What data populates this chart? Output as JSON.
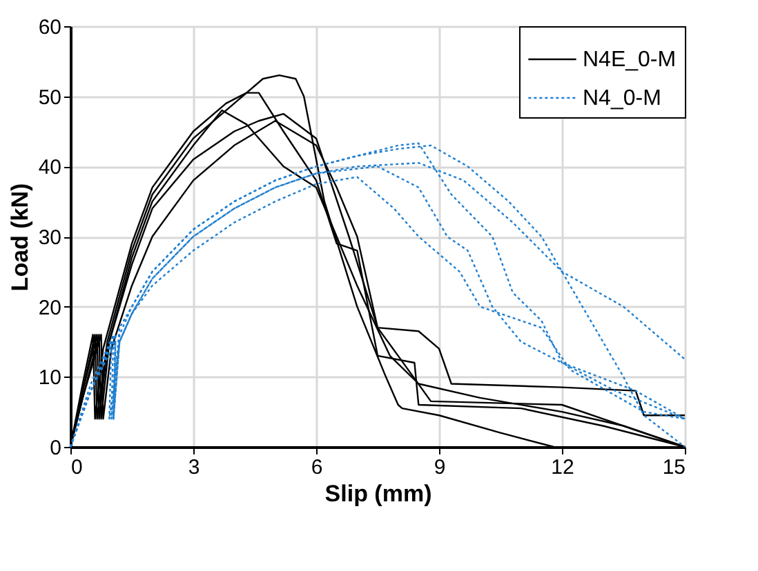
{
  "chart_data": {
    "type": "line",
    "xlabel": "Slip (mm)",
    "ylabel": "Load (kN)",
    "xlim": [
      0,
      15
    ],
    "xticks": [
      0,
      3,
      6,
      9,
      12,
      15
    ],
    "ylim": [
      0,
      60
    ],
    "yticks": [
      0,
      10,
      20,
      30,
      40,
      50,
      60
    ],
    "grid": true,
    "legend": "top right",
    "marker": "none",
    "series": [
      {
        "name": "N4E_0-M",
        "color": "#000000",
        "line_style": "solid",
        "x": [
          0,
          0.3,
          0.6,
          0.65,
          0.9,
          1.5,
          2,
          3,
          4,
          4.7,
          5.1,
          5.5,
          5.7,
          6.2,
          7,
          7.7,
          8,
          8.1,
          9,
          10.5,
          11.8
        ],
        "values": [
          0,
          8,
          16,
          4,
          15,
          28,
          36,
          44,
          49,
          52.5,
          53,
          52.5,
          50,
          35,
          20,
          10,
          6,
          5.5,
          4.5,
          2,
          0
        ]
      },
      {
        "color": "#000000",
        "line_style": "solid",
        "x": [
          0,
          0.3,
          0.55,
          0.6,
          0.8,
          1.5,
          2,
          3,
          3.8,
          4.3,
          4.6,
          5.2,
          6,
          6.5,
          7,
          7.5,
          8.4,
          8.5,
          11,
          13,
          15
        ],
        "values": [
          0,
          9,
          16,
          4,
          14,
          29,
          37,
          45,
          49,
          50.5,
          50.5,
          45,
          38,
          29,
          28,
          13,
          12,
          6,
          5.5,
          3,
          0
        ]
      },
      {
        "color": "#000000",
        "line_style": "solid",
        "x": [
          0,
          0.3,
          0.65,
          0.7,
          0.9,
          1.5,
          2,
          3,
          3.7,
          4.3,
          5.2,
          6,
          7,
          7.8,
          8.5,
          10,
          12,
          13.5,
          15
        ],
        "values": [
          0,
          8,
          16,
          4,
          14,
          27,
          35,
          43,
          48,
          46,
          40,
          37,
          23,
          13,
          9,
          7,
          5,
          3,
          0
        ]
      },
      {
        "color": "#000000",
        "line_style": "solid",
        "x": [
          0,
          0.3,
          0.7,
          0.75,
          0.95,
          1.5,
          2,
          3,
          4,
          4.6,
          5.2,
          6,
          6.8,
          7.5,
          8.5,
          9,
          9.3,
          12,
          13.8,
          14,
          15
        ],
        "values": [
          0,
          7,
          16,
          4,
          15,
          26,
          34,
          41,
          45,
          46.5,
          47.5,
          44,
          30,
          17,
          16.5,
          14,
          9,
          8.5,
          8,
          4.5,
          4.5
        ]
      },
      {
        "color": "#000000",
        "line_style": "solid",
        "x": [
          0,
          0.3,
          0.75,
          0.8,
          1,
          1.5,
          2,
          3,
          4,
          5,
          6,
          6.5,
          7,
          7.5,
          8,
          8.8,
          12,
          13,
          15
        ],
        "values": [
          0,
          7,
          16,
          4,
          14,
          23,
          30,
          38,
          43,
          46.5,
          43,
          37,
          30,
          17,
          13,
          6.5,
          6,
          4,
          0
        ]
      },
      {
        "name": "N4_0-M",
        "color": "#1f7fd0",
        "line_style": "dotted",
        "x": [
          0,
          0.5,
          1.05,
          1.0,
          1.2,
          1.5,
          2,
          3,
          4,
          5,
          6,
          7,
          8,
          8.8,
          9.7,
          10.7,
          11.5,
          12.5,
          13.5,
          14,
          15
        ],
        "values": [
          0,
          9,
          16,
          4,
          17,
          20,
          25,
          31,
          35,
          38,
          40,
          41.5,
          42.5,
          43,
          40,
          35,
          30,
          20,
          10,
          4.5,
          0
        ]
      },
      {
        "color": "#1f7fd0",
        "line_style": "dotted",
        "x": [
          0,
          0.5,
          1.1,
          1.05,
          1.2,
          1.5,
          2,
          3,
          4,
          5,
          6,
          7,
          8,
          8.5,
          9.3,
          10.3,
          10.8,
          11.5,
          12,
          13.3,
          15
        ],
        "values": [
          0,
          8,
          16,
          4,
          16,
          20,
          25,
          31,
          35,
          38,
          40,
          41.5,
          43,
          43.3,
          36,
          30,
          22,
          18,
          12,
          8,
          4
        ]
      },
      {
        "color": "#1f7fd0",
        "line_style": "dotted",
        "x": [
          0,
          0.5,
          1.1,
          1.05,
          1.2,
          1.5,
          2,
          3,
          4,
          5,
          6,
          7,
          8.5,
          9.6,
          10.8,
          12,
          13.5,
          14.5,
          15
        ],
        "values": [
          0,
          8,
          15,
          4,
          15,
          19,
          24,
          30,
          34,
          37,
          39,
          40,
          40.5,
          38,
          32,
          25,
          20,
          15,
          12.5
        ]
      },
      {
        "color": "#1f7fd0",
        "line_style": "dotted",
        "x": [
          0,
          0.5,
          1.1,
          1.05,
          1.2,
          1.5,
          2,
          3,
          4,
          5,
          6,
          7.5,
          8.5,
          9.2,
          9.7,
          10.3,
          11,
          12,
          13.8,
          15
        ],
        "values": [
          0,
          8,
          16,
          4,
          15,
          19,
          24,
          30,
          34,
          37,
          39,
          40,
          37,
          30,
          28,
          20,
          15,
          12,
          8,
          4
        ]
      },
      {
        "color": "#1f7fd0",
        "line_style": "dotted",
        "x": [
          0,
          0.5,
          1.0,
          0.95,
          1.2,
          1.5,
          2,
          3,
          4,
          5,
          6,
          7,
          7.9,
          8.5,
          9.5,
          10,
          11.5,
          12.2,
          14,
          15
        ],
        "values": [
          0,
          8,
          15,
          4,
          15,
          19,
          23,
          28,
          32,
          35,
          37.5,
          38.5,
          34,
          30,
          25,
          20,
          17,
          11,
          5,
          4
        ]
      }
    ]
  }
}
